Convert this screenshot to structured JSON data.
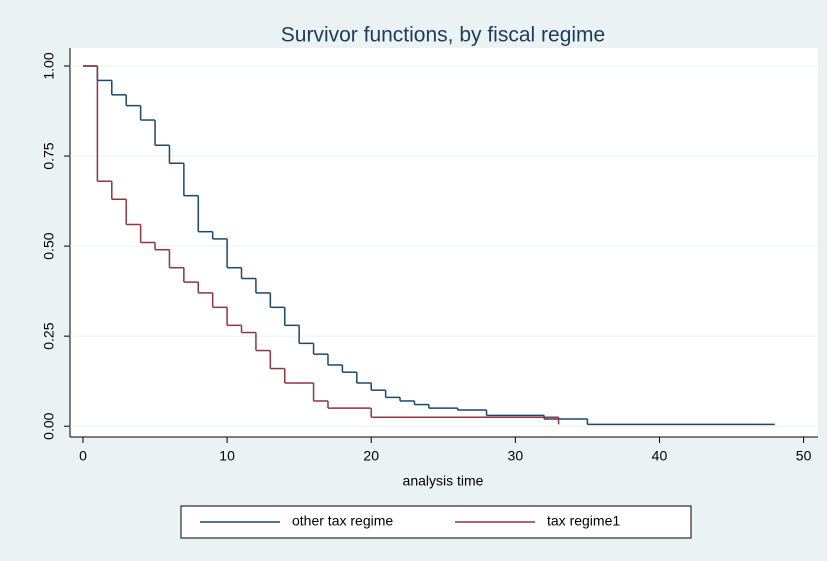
{
  "chart_data": {
    "type": "step",
    "title": "Survivor functions, by fiscal regime",
    "x_label": "analysis time",
    "xlim": [
      -0.9,
      51.0
    ],
    "xticks": [
      0,
      10,
      20,
      30,
      40,
      50
    ],
    "ylim": [
      -0.03,
      1.05
    ],
    "yticks": [
      {
        "value": 0,
        "label": "0.00"
      },
      {
        "value": 0.25,
        "label": "0.25"
      },
      {
        "value": 0.5,
        "label": "0.50"
      },
      {
        "value": 0.75,
        "label": "0.75"
      },
      {
        "value": 1,
        "label": "1.00"
      }
    ],
    "grid": true,
    "legend": "bottom",
    "series": [
      {
        "name": "other tax regime",
        "color": "#1a476f",
        "x": [
          0,
          1,
          2,
          3,
          4,
          5,
          6,
          7,
          8,
          9,
          10,
          11,
          12,
          13,
          14,
          15,
          16,
          17,
          18,
          19,
          20,
          21,
          22,
          23,
          24,
          26,
          28,
          32,
          35,
          48
        ],
        "values": [
          1,
          0.96,
          0.92,
          0.89,
          0.85,
          0.78,
          0.73,
          0.64,
          0.54,
          0.52,
          0.44,
          0.41,
          0.37,
          0.33,
          0.28,
          0.23,
          0.2,
          0.17,
          0.15,
          0.12,
          0.1,
          0.08,
          0.07,
          0.06,
          0.05,
          0.045,
          0.03,
          0.02,
          0.005,
          0.005
        ]
      },
      {
        "name": "tax regime1",
        "color": "#90353b",
        "x": [
          0,
          1,
          2,
          3,
          4,
          5,
          6,
          7,
          8,
          9,
          10,
          11,
          12,
          13,
          14,
          16,
          17,
          20,
          33
        ],
        "values": [
          1,
          0.68,
          0.63,
          0.56,
          0.51,
          0.49,
          0.44,
          0.4,
          0.37,
          0.33,
          0.28,
          0.26,
          0.21,
          0.16,
          0.12,
          0.07,
          0.05,
          0.025,
          0.005
        ]
      }
    ]
  }
}
